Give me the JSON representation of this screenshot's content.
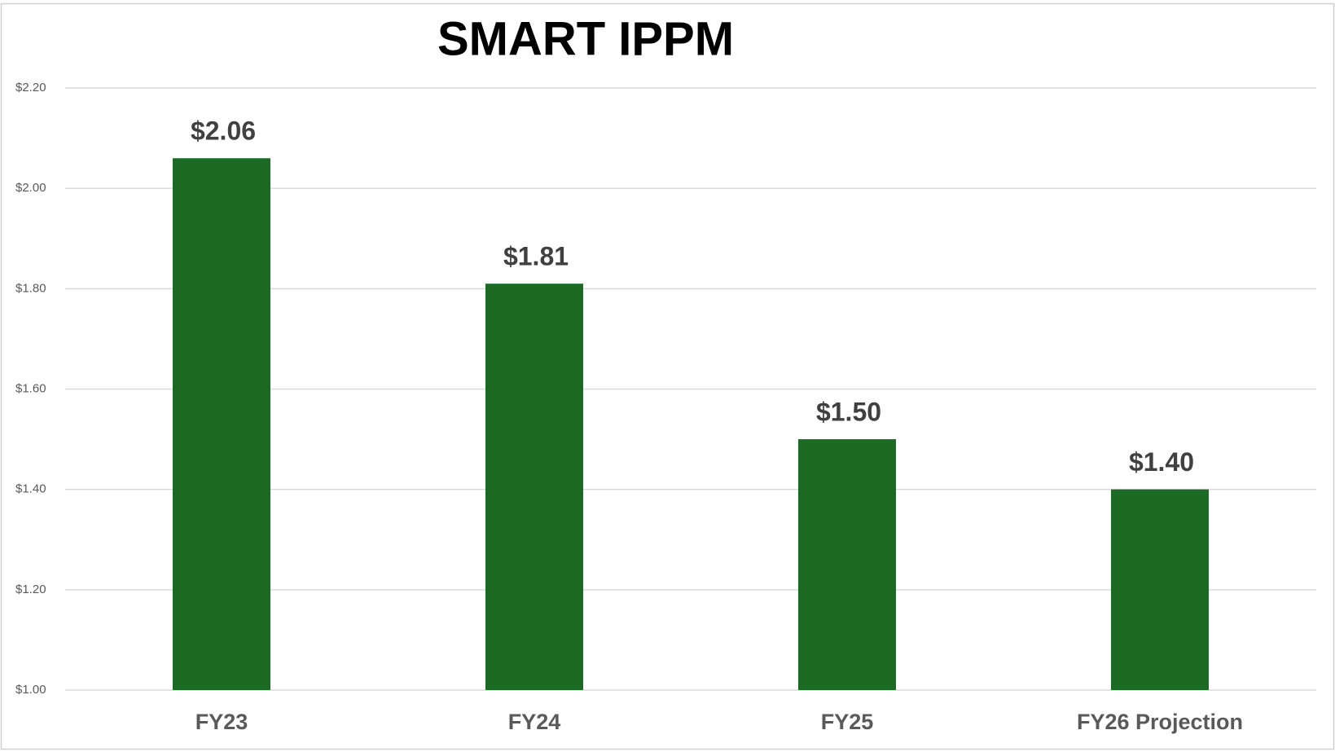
{
  "chart_data": {
    "type": "bar",
    "title": "SMART IPPM",
    "categories": [
      "FY23",
      "FY24",
      "FY25",
      "FY26 Projection"
    ],
    "values": [
      2.06,
      1.81,
      1.5,
      1.4
    ],
    "value_labels": [
      "$2.06",
      "$1.81",
      "$1.50",
      "$1.40"
    ],
    "color": "#1b6b25",
    "ylim": [
      1.0,
      2.2
    ],
    "yticks": [
      {
        "value": 1.0,
        "label": "$1.00"
      },
      {
        "value": 1.2,
        "label": "$1.20"
      },
      {
        "value": 1.4,
        "label": "$1.40"
      },
      {
        "value": 1.6,
        "label": "$1.60"
      },
      {
        "value": 1.8,
        "label": "$1.80"
      },
      {
        "value": 2.0,
        "label": "$2.00"
      },
      {
        "value": 2.2,
        "label": "$2.20"
      }
    ],
    "grid": true
  }
}
